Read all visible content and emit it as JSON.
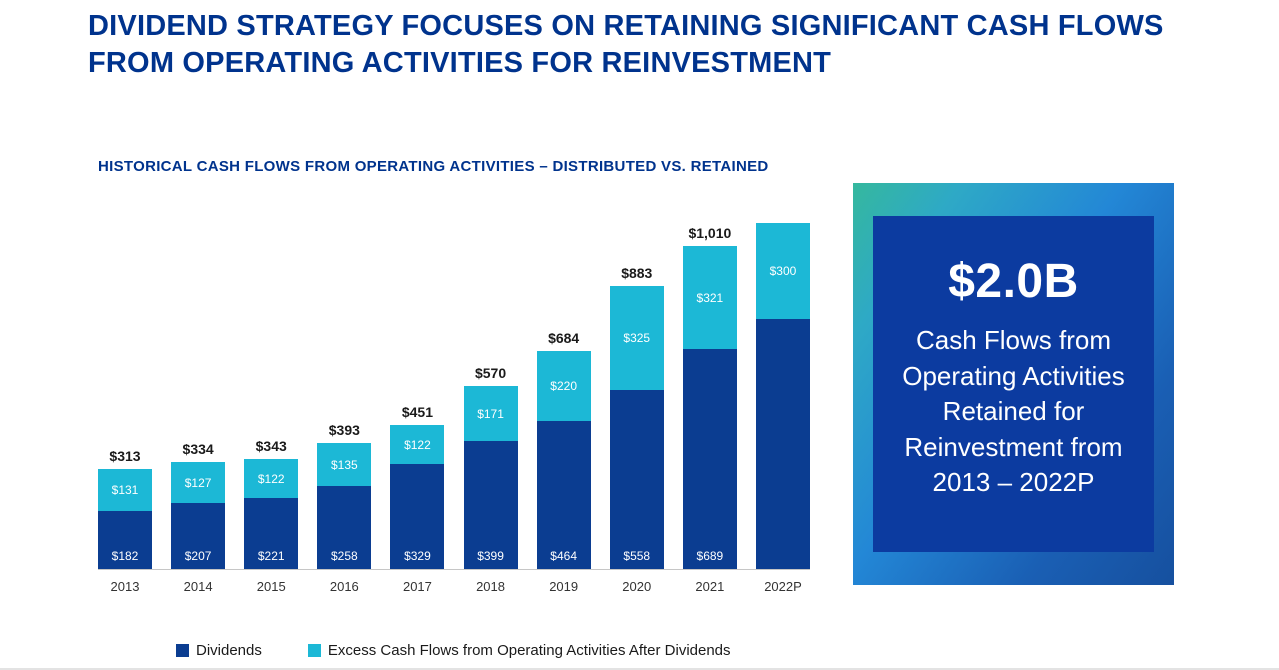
{
  "header": {
    "title": "DIVIDEND STRATEGY FOCUSES ON RETAINING SIGNIFICANT CASH FLOWS FROM OPERATING ACTIVITIES FOR REINVESTMENT"
  },
  "chart_data": {
    "type": "bar",
    "subtype": "stacked",
    "title": "HISTORICAL CASH FLOWS FROM OPERATING ACTIVITIES – DISTRIBUTED VS. RETAINED",
    "categories": [
      "2013",
      "2014",
      "2015",
      "2016",
      "2017",
      "2018",
      "2019",
      "2020",
      "2021",
      "2022P"
    ],
    "series": [
      {
        "name": "Dividends",
        "color": "#0b3d91",
        "values": [
          182,
          207,
          221,
          258,
          329,
          399,
          464,
          558,
          689,
          780
        ],
        "labels": [
          "$182",
          "$207",
          "$221",
          "$258",
          "$329",
          "$399",
          "$464",
          "$558",
          "$689",
          ""
        ]
      },
      {
        "name": "Excess Cash Flows from Operating Activities After Dividends",
        "color": "#1cb8d6",
        "values": [
          131,
          127,
          122,
          135,
          122,
          171,
          220,
          325,
          321,
          300
        ],
        "labels": [
          "$131",
          "$127",
          "$122",
          "$135",
          "$122",
          "$171",
          "$220",
          "$325",
          "$321",
          "$300"
        ]
      }
    ],
    "totals": [
      "$313",
      "$334",
      "$343",
      "$393",
      "$451",
      "$570",
      "$684",
      "$883",
      "$1,010",
      ""
    ],
    "ylim": [
      0,
      1100
    ],
    "grid": false,
    "legend_position": "bottom"
  },
  "legend": {
    "items": [
      {
        "label": "Dividends",
        "color": "#0b3d91"
      },
      {
        "label": "Excess Cash Flows from Operating Activities After Dividends",
        "color": "#1cb8d6"
      }
    ]
  },
  "callout": {
    "headline": "$2.0B",
    "body": "Cash Flows from Operating Activities Retained for Reinvestment from 2013 – 2022P",
    "inner_color": "#0c3ba0",
    "accent_colors": [
      "#35b89e",
      "#2387d6",
      "#16509f"
    ]
  }
}
